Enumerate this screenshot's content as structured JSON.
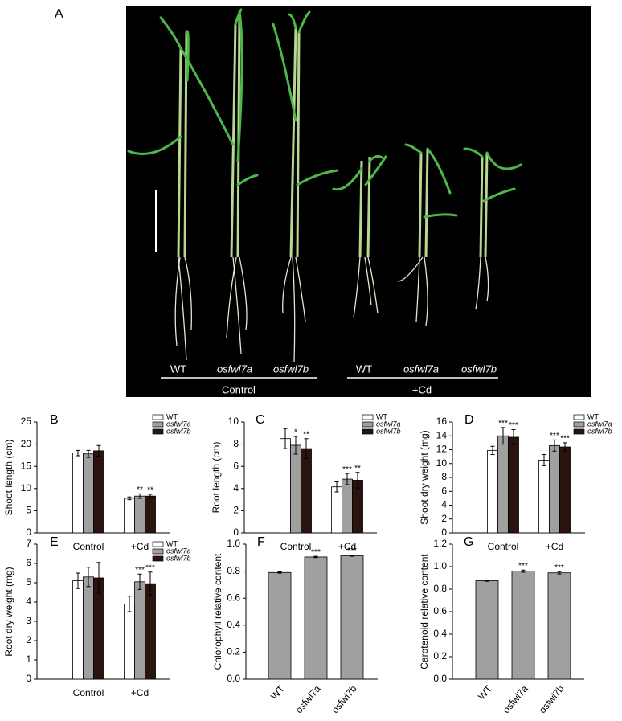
{
  "panel_label": "A",
  "photo": {
    "control_labels": [
      "WT",
      "osfwl7a",
      "osfwl7b"
    ],
    "cd_labels": [
      "WT",
      "osfwl7a",
      "osfwl7b"
    ],
    "control_group": "Control",
    "cd_group": "+Cd"
  },
  "chart_data": [
    {
      "type": "bar",
      "panel": "B",
      "ylabel": "Shoot length (cm)",
      "categories": [
        "Control",
        "+Cd"
      ],
      "ylim": [
        0,
        25
      ],
      "yticks": [
        0,
        5,
        10,
        15,
        20,
        25
      ],
      "legend": true,
      "series": [
        {
          "name": "WT",
          "color": "#ffffff",
          "values": [
            18,
            7.8
          ],
          "errors": [
            0.6,
            0.3
          ],
          "annotations": [
            null,
            null
          ]
        },
        {
          "name": "osfwl7a",
          "color": "#a0a0a0",
          "font_style": "italic",
          "values": [
            17.8,
            8.3
          ],
          "errors": [
            0.8,
            0.5
          ],
          "annotations": [
            null,
            "**"
          ]
        },
        {
          "name": "osfwl7b",
          "color": "#2b1410",
          "font_style": "italic",
          "values": [
            18.5,
            8.3
          ],
          "errors": [
            1.2,
            0.4
          ],
          "annotations": [
            null,
            "**"
          ]
        }
      ]
    },
    {
      "type": "bar",
      "panel": "C",
      "ylabel": "Root length (cm)",
      "categories": [
        "Control",
        "+Cd"
      ],
      "ylim": [
        0,
        10
      ],
      "yticks": [
        0,
        2,
        4,
        6,
        8,
        10
      ],
      "legend": true,
      "series": [
        {
          "name": "WT",
          "color": "#ffffff",
          "values": [
            8.5,
            4.15
          ],
          "errors": [
            0.9,
            0.45
          ],
          "annotations": [
            null,
            null
          ]
        },
        {
          "name": "osfwl7a",
          "color": "#a0a0a0",
          "font_style": "italic",
          "values": [
            7.9,
            4.85
          ],
          "errors": [
            0.8,
            0.5
          ],
          "annotations": [
            "*",
            "***"
          ]
        },
        {
          "name": "osfwl7b",
          "color": "#2b1410",
          "font_style": "italic",
          "values": [
            7.6,
            4.75
          ],
          "errors": [
            0.9,
            0.7
          ],
          "annotations": [
            "**",
            "**"
          ]
        }
      ]
    },
    {
      "type": "bar",
      "panel": "D",
      "ylabel": "Shoot dry weight (mg)",
      "categories": [
        "Control",
        "+Cd"
      ],
      "ylim": [
        0,
        16
      ],
      "yticks": [
        0,
        2,
        4,
        6,
        8,
        10,
        12,
        14,
        16
      ],
      "legend": true,
      "series": [
        {
          "name": "WT",
          "color": "#ffffff",
          "values": [
            11.9,
            10.5
          ],
          "errors": [
            0.6,
            0.8
          ],
          "annotations": [
            null,
            null
          ]
        },
        {
          "name": "osfwl7a",
          "color": "#a0a0a0",
          "font_style": "italic",
          "values": [
            14,
            12.6
          ],
          "errors": [
            1.2,
            0.8
          ],
          "annotations": [
            "***",
            "***"
          ]
        },
        {
          "name": "osfwl7b",
          "color": "#2b1410",
          "font_style": "italic",
          "values": [
            13.8,
            12.4
          ],
          "errors": [
            1.1,
            0.6
          ],
          "annotations": [
            "***",
            "***"
          ]
        }
      ]
    },
    {
      "type": "bar",
      "panel": "E",
      "ylabel": "Root dry weight (mg)",
      "categories": [
        "Control",
        "+Cd"
      ],
      "ylim": [
        0,
        7
      ],
      "yticks": [
        0,
        1,
        2,
        3,
        4,
        5,
        6,
        7
      ],
      "legend": true,
      "series": [
        {
          "name": "WT",
          "color": "#ffffff",
          "values": [
            5.1,
            3.9
          ],
          "errors": [
            0.4,
            0.4
          ],
          "annotations": [
            null,
            null
          ]
        },
        {
          "name": "osfwl7a",
          "color": "#a0a0a0",
          "font_style": "italic",
          "values": [
            5.3,
            5.05
          ],
          "errors": [
            0.5,
            0.4
          ],
          "annotations": [
            null,
            "***"
          ]
        },
        {
          "name": "osfwl7b",
          "color": "#2b1410",
          "font_style": "italic",
          "values": [
            5.25,
            4.95
          ],
          "errors": [
            0.8,
            0.6
          ],
          "annotations": [
            null,
            "***"
          ]
        }
      ]
    },
    {
      "type": "bar",
      "panel": "F",
      "ylabel": "Chlorophyll relative content",
      "categories": [
        "WT",
        "osfwl7a",
        "osfwl7b"
      ],
      "ylim": [
        0,
        1
      ],
      "yticks": [
        {
          "value": 0,
          "label": "0.0"
        },
        0.2,
        0.4,
        0.6,
        0.8,
        {
          "value": 1,
          "label": "1.0"
        }
      ],
      "legend": false,
      "rotate_categories": true,
      "series": [
        {
          "color": "#a0a0a0",
          "values": [
            0.79,
            0.905,
            0.915
          ],
          "errors": [
            0.005,
            0.005,
            0.005
          ],
          "annotations": [
            null,
            "***",
            "***"
          ]
        }
      ]
    },
    {
      "type": "bar",
      "panel": "G",
      "ylabel": "Carotenoid relative content",
      "categories": [
        "WT",
        "osfwl7a",
        "osfwl7b"
      ],
      "ylim": [
        0,
        1.2
      ],
      "yticks": [
        {
          "value": 0,
          "label": "0.0"
        },
        0.2,
        0.4,
        0.6,
        0.8,
        {
          "value": 1,
          "label": "1.0"
        },
        1.2
      ],
      "legend": false,
      "rotate_categories": true,
      "series": [
        {
          "color": "#a0a0a0",
          "values": [
            0.875,
            0.96,
            0.945
          ],
          "errors": [
            0.005,
            0.01,
            0.01
          ],
          "annotations": [
            null,
            "***",
            "***"
          ]
        }
      ]
    }
  ]
}
